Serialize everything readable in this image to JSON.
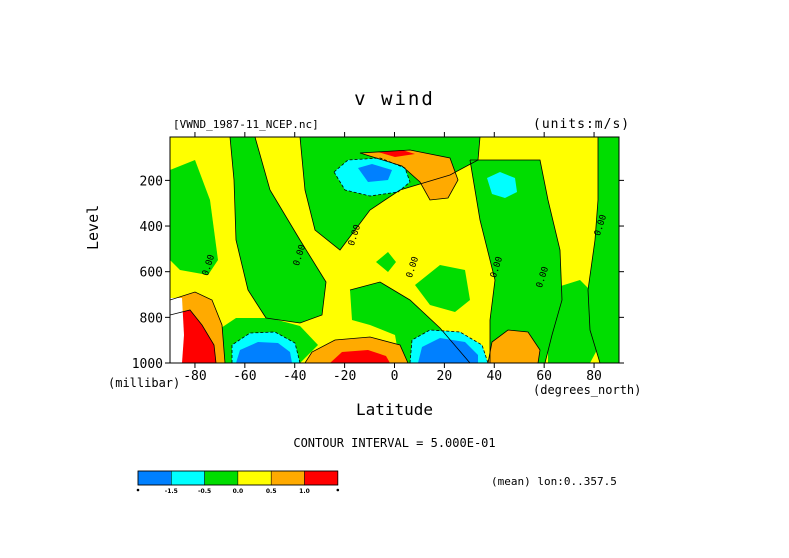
{
  "chart_data": {
    "type": "heatmap",
    "title": "v wind",
    "source_file": "[VWND_1987-11_NCEP.nc]",
    "units": "(units:m/s)",
    "xlabel": "Latitude",
    "x_units": "(degrees_north)",
    "ylabel": "Level",
    "y_units": "(millibar)",
    "xlim": [
      -90,
      90
    ],
    "ylim": [
      1000,
      10
    ],
    "x_ticks": [
      "-80",
      "-60",
      "-40",
      "-20",
      "0",
      "20",
      "40",
      "60",
      "80"
    ],
    "y_ticks": [
      "200",
      "400",
      "600",
      "800",
      "1000"
    ],
    "contour_interval_text": "CONTOUR INTERVAL = 5.000E-01",
    "contour_labels": [
      "0.00",
      "0.00",
      "0.00",
      "0.00",
      "0.00",
      "0.00",
      "0.00"
    ],
    "subtitle": "(mean) lon:0..357.5",
    "colorbar": {
      "labels": [
        "-1.5",
        "-0.5",
        "0.0",
        "0.5",
        "1.0"
      ],
      "colors": [
        "#0080ff",
        "#00ffff",
        "#00dd00",
        "#ffff00",
        "#ffaa00",
        "#ff0000"
      ]
    }
  }
}
